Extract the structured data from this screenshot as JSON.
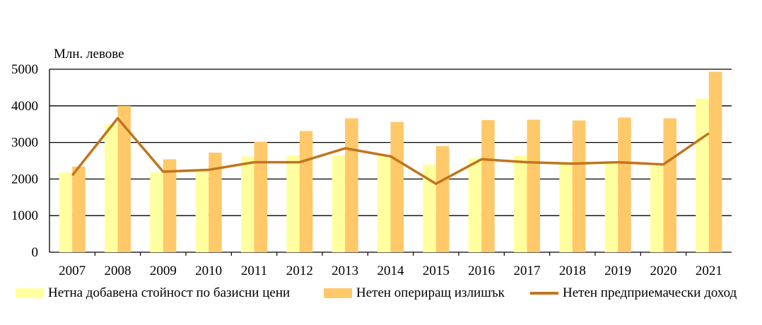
{
  "chart_data": {
    "type": "bar",
    "unit_label": "Млн. левове",
    "categories": [
      "2007",
      "2008",
      "2009",
      "2010",
      "2011",
      "2012",
      "2013",
      "2014",
      "2015",
      "2016",
      "2017",
      "2018",
      "2019",
      "2020",
      "2021"
    ],
    "ylim": [
      0,
      5000
    ],
    "yticks": [
      0,
      1000,
      2000,
      3000,
      4000,
      5000
    ],
    "grid": true,
    "legend_position": "bottom",
    "series": [
      {
        "name": "Нетна добавена стойност по базисни цени",
        "kind": "bar",
        "color": "#FFFF9F",
        "values": [
          2180,
          3500,
          2180,
          2250,
          2620,
          2650,
          2640,
          2640,
          2400,
          2570,
          2640,
          2460,
          2480,
          2360,
          4200
        ]
      },
      {
        "name": "Нетен опериращ излишък",
        "kind": "bar",
        "color": "#FFC869",
        "values": [
          2340,
          4000,
          2540,
          2720,
          3020,
          3310,
          3660,
          3560,
          2900,
          3610,
          3620,
          3600,
          3680,
          3660,
          4930
        ]
      },
      {
        "name": "Нетен предприемачески доход",
        "kind": "line",
        "color": "#C0751C",
        "values": [
          2100,
          3660,
          2200,
          2250,
          2460,
          2460,
          2840,
          2620,
          1870,
          2540,
          2460,
          2420,
          2460,
          2400,
          3250
        ]
      }
    ]
  }
}
